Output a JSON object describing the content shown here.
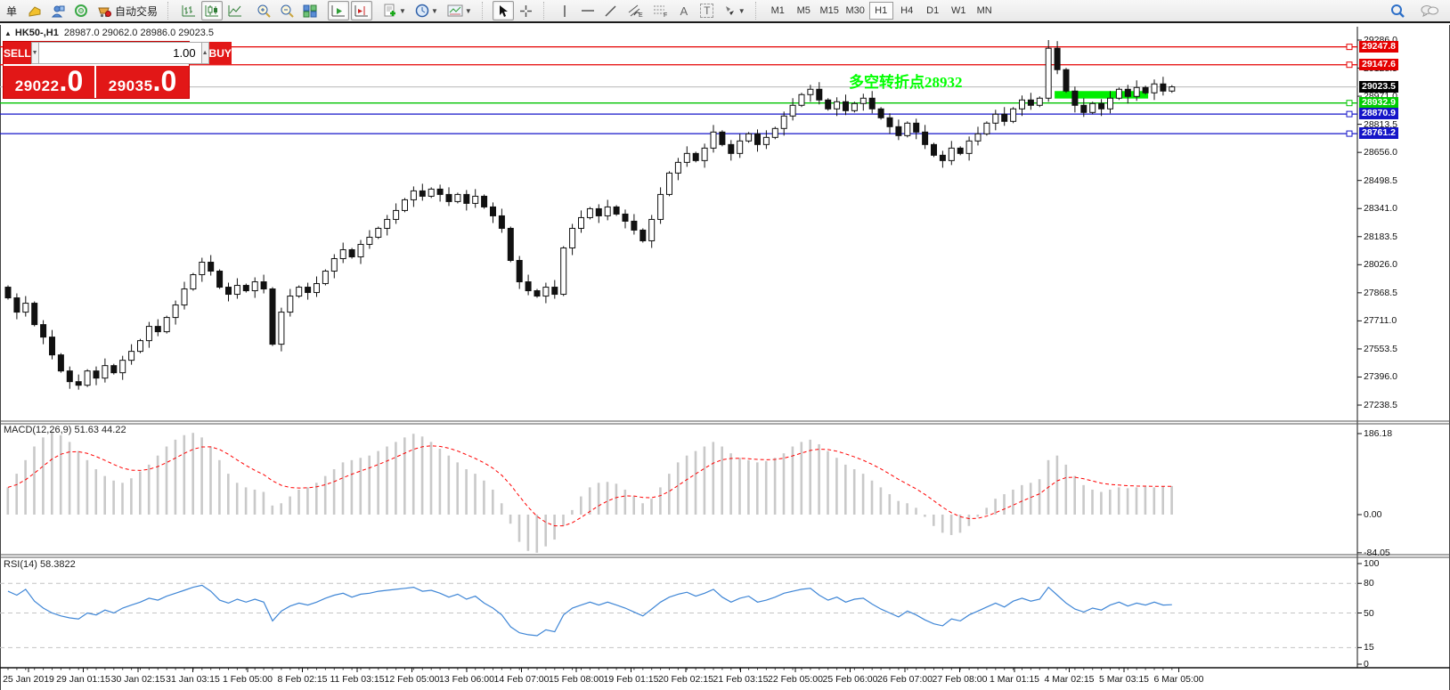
{
  "window": {
    "collapse_arrow": "▲",
    "symbol_title": "HK50-,H1",
    "ohlc_text": "28987.0 29062.0 28986.0 29023.5"
  },
  "toolbar": {
    "new_order_label": "单",
    "autotrading_label": "自动交易",
    "timeframes": [
      "M1",
      "M5",
      "M15",
      "M30",
      "H1",
      "H4",
      "D1",
      "W1",
      "MN"
    ],
    "active_timeframe": "H1",
    "tool_labels": {
      "text": "A",
      "text_label": "T"
    }
  },
  "trade_panel": {
    "sell_label": "SELL",
    "buy_label": "BUY",
    "volume": "1.00",
    "sell_price_main": "29022",
    "sell_price_frac": ".0",
    "buy_price_main": "29035",
    "buy_price_frac": ".0"
  },
  "annotation": {
    "text": "多空转折点28932",
    "color": "#00ff00"
  },
  "chart_data": {
    "type": "candlestick",
    "symbol": "HK50-",
    "timeframe": "H1",
    "title": "HK50-,H1 28987.0 29062.0 28986.0 29023.5",
    "price_axis": {
      "range": [
        27238.5,
        29286.0
      ],
      "ticks": [
        "29286.0",
        "29128.5",
        "28971.0",
        "28813.5",
        "28656.0",
        "28498.5",
        "28341.0",
        "28183.5",
        "28026.0",
        "27868.5",
        "27711.0",
        "27553.5",
        "27396.0",
        "27238.5"
      ]
    },
    "closes": [
      27840,
      27760,
      27810,
      27690,
      27620,
      27520,
      27430,
      27370,
      27350,
      27430,
      27390,
      27460,
      27420,
      27490,
      27540,
      27600,
      27680,
      27650,
      27730,
      27800,
      27890,
      27970,
      28040,
      27990,
      27900,
      27860,
      27910,
      27880,
      27930,
      27890,
      27580,
      27760,
      27850,
      27900,
      27870,
      27920,
      27990,
      28060,
      28110,
      28070,
      28140,
      28180,
      28230,
      28280,
      28330,
      28390,
      28440,
      28410,
      28450,
      28420,
      28380,
      28420,
      28370,
      28410,
      28350,
      28300,
      28230,
      28050,
      27930,
      27880,
      27850,
      27900,
      27860,
      28120,
      28230,
      28290,
      28340,
      28300,
      28350,
      28310,
      28270,
      28220,
      28160,
      28280,
      28420,
      28540,
      28600,
      28650,
      28610,
      28680,
      28770,
      28700,
      28650,
      28720,
      28760,
      28700,
      28740,
      28790,
      28860,
      28920,
      28980,
      29010,
      28950,
      28900,
      28940,
      28890,
      28930,
      28960,
      28900,
      28850,
      28800,
      28750,
      28820,
      28770,
      28700,
      28640,
      28610,
      28680,
      28650,
      28720,
      28760,
      28820,
      28870,
      28830,
      28900,
      28950,
      28920,
      28960,
      29240,
      29120,
      29000,
      28920,
      28880,
      28930,
      28900,
      28960,
      29010,
      28970,
      29020,
      28990,
      29040,
      29000,
      29023.5
    ],
    "spike": {
      "idx": 118,
      "high": 29286,
      "low": 28940
    },
    "hlines": [
      {
        "price": 29247.8,
        "label": "29247.8",
        "color": "#e40000",
        "label_bg": "#e40000",
        "handle": true
      },
      {
        "price": 29147.6,
        "label": "29147.6",
        "color": "#e40000",
        "label_bg": "#e40000",
        "handle": true
      },
      {
        "price": 29023.5,
        "label": "29023.5",
        "color": "#b8b8b8",
        "label_bg": "#000000",
        "handle": false,
        "current": true
      },
      {
        "price": 28932.9,
        "label": "28932.9",
        "color": "#00c400",
        "label_bg": "#00ce00",
        "handle": true
      },
      {
        "price": 28870.9,
        "label": "28870.9",
        "color": "#1515c8",
        "label_bg": "#1515c8",
        "handle": true
      },
      {
        "price": 28761.2,
        "label": "28761.2",
        "color": "#1515c8",
        "label_bg": "#1515c8",
        "handle": true
      }
    ],
    "green_box": {
      "from_idx": 119,
      "to_idx": 129,
      "price_top": 29000,
      "price_bottom": 28958,
      "color": "#00ee00"
    },
    "macd": {
      "label": "MACD(12,26,9) 51.63 44.22",
      "axis_ticks": [
        "186.18",
        "0.00",
        "-84.05"
      ],
      "hist_color": "#c9c9c9",
      "signal_color": "#ff0000",
      "histogram": [
        60,
        90,
        120,
        150,
        170,
        183,
        175,
        160,
        140,
        120,
        100,
        85,
        75,
        70,
        80,
        95,
        110,
        130,
        150,
        165,
        175,
        180,
        170,
        150,
        120,
        90,
        70,
        60,
        55,
        50,
        20,
        25,
        40,
        55,
        60,
        70,
        85,
        100,
        115,
        120,
        125,
        130,
        140,
        150,
        160,
        170,
        178,
        172,
        160,
        145,
        130,
        115,
        100,
        90,
        75,
        55,
        25,
        -20,
        -60,
        -80,
        -84,
        -70,
        -55,
        -25,
        10,
        40,
        60,
        70,
        72,
        68,
        55,
        40,
        25,
        35,
        60,
        90,
        115,
        130,
        140,
        150,
        160,
        150,
        135,
        125,
        120,
        115,
        118,
        125,
        135,
        150,
        160,
        165,
        155,
        140,
        125,
        110,
        100,
        90,
        75,
        60,
        45,
        30,
        25,
        15,
        -5,
        -25,
        -40,
        -45,
        -40,
        -25,
        -5,
        15,
        35,
        45,
        55,
        65,
        70,
        78,
        120,
        130,
        110,
        85,
        65,
        55,
        50,
        55,
        60,
        58,
        60,
        62,
        60,
        62,
        63
      ]
    },
    "rsi": {
      "label": "RSI(14) 58.3822",
      "axis_ticks": [
        "100",
        "80",
        "50",
        "15",
        "0"
      ],
      "levels": [
        80,
        50,
        15
      ],
      "color": "#3f86d6",
      "values": [
        72,
        68,
        74,
        62,
        55,
        50,
        47,
        45,
        44,
        50,
        48,
        53,
        50,
        55,
        58,
        61,
        65,
        63,
        67,
        70,
        73,
        76,
        78,
        72,
        63,
        60,
        64,
        61,
        64,
        61,
        42,
        52,
        57,
        60,
        58,
        61,
        65,
        68,
        70,
        66,
        69,
        70,
        72,
        73,
        74,
        75,
        76,
        72,
        73,
        70,
        66,
        69,
        64,
        67,
        60,
        55,
        48,
        36,
        30,
        28,
        27,
        33,
        31,
        48,
        55,
        58,
        61,
        58,
        61,
        58,
        55,
        51,
        47,
        54,
        61,
        66,
        69,
        71,
        67,
        70,
        74,
        66,
        61,
        65,
        67,
        61,
        63,
        66,
        70,
        72,
        74,
        75,
        68,
        63,
        66,
        61,
        64,
        65,
        59,
        54,
        50,
        46,
        52,
        48,
        43,
        39,
        37,
        44,
        42,
        48,
        52,
        56,
        60,
        56,
        62,
        65,
        62,
        64,
        76,
        68,
        60,
        54,
        51,
        55,
        53,
        58,
        61,
        57,
        60,
        58,
        61,
        58,
        58.38
      ]
    },
    "x_axis": {
      "labels": [
        "25 Jan 2019",
        "29 Jan 01:15",
        "30 Jan 02:15",
        "31 Jan 03:15",
        "1 Feb 05:00",
        "8 Feb 02:15",
        "11 Feb 03:15",
        "12 Feb 05:00",
        "13 Feb 06:00",
        "14 Feb 07:00",
        "15 Feb 08:00",
        "19 Feb 01:15",
        "20 Feb 02:15",
        "21 Feb 03:15",
        "22 Feb 05:00",
        "25 Feb 06:00",
        "26 Feb 07:00",
        "27 Feb 08:00",
        "1 Mar 01:15",
        "4 Mar 02:15",
        "5 Mar 03:15",
        "6 Mar 05:00"
      ]
    }
  }
}
